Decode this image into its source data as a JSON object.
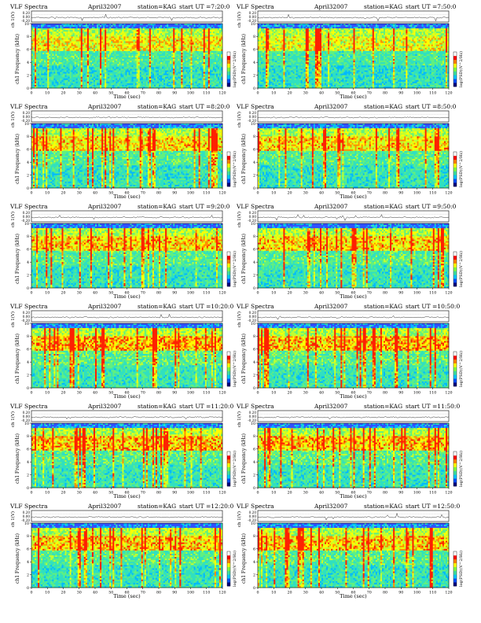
{
  "chart_data": {
    "type": "heatmap",
    "common": {
      "title_left": "VLF Spectra",
      "date": "April32007",
      "station": "station=KAG",
      "start_prefix": "start  UT =",
      "time_label": "Time  (sec)",
      "top_ylabel": "ch 1(V)",
      "ylabel": "ch1 Frequency (kHz)",
      "cbar_label": "log(PSD)(V^2/Hz)",
      "x_ticks": [
        0,
        10,
        20,
        30,
        40,
        50,
        60,
        70,
        80,
        90,
        100,
        110,
        120
      ],
      "y_ticks": [
        0,
        2,
        4,
        6,
        8,
        10
      ],
      "top_ticks": [
        "0.20",
        "0.00",
        "-0.20"
      ],
      "xlim": [
        0,
        120
      ],
      "ylim": [
        0,
        10
      ],
      "colorscale": [
        "#000080",
        "#0050ff",
        "#00c8ff",
        "#40e0a0",
        "#80ff40",
        "#ffff00",
        "#ff8000",
        "#ff0000",
        "#ffffff"
      ]
    },
    "panels": [
      {
        "start": "7:20:0",
        "col": 0,
        "row": 0,
        "warm": 0.35
      },
      {
        "start": "7:50:0",
        "col": 1,
        "row": 0,
        "warm": 0.25
      },
      {
        "start": "8:20:0",
        "col": 0,
        "row": 1,
        "warm": 0.45
      },
      {
        "start": "8:50:0",
        "col": 1,
        "row": 1,
        "warm": 0.45
      },
      {
        "start": "9:20:0",
        "col": 0,
        "row": 2,
        "warm": 0.5
      },
      {
        "start": "9:50:0",
        "col": 1,
        "row": 2,
        "warm": 0.5
      },
      {
        "start": "10:20:0",
        "col": 0,
        "row": 3,
        "warm": 0.7
      },
      {
        "start": "10:50:0",
        "col": 1,
        "row": 3,
        "warm": 0.65
      },
      {
        "start": "11:20:0",
        "col": 0,
        "row": 4,
        "warm": 0.6
      },
      {
        "start": "11:50:0",
        "col": 1,
        "row": 4,
        "warm": 0.6
      },
      {
        "start": "12:20:0",
        "col": 0,
        "row": 5,
        "warm": 0.55
      },
      {
        "start": "12:50:0",
        "col": 1,
        "row": 5,
        "warm": 0.55
      }
    ]
  }
}
